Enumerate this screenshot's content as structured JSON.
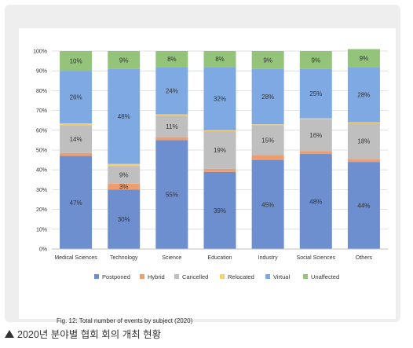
{
  "figure_caption": "Fig. 12: Total number of events by subject (2020)",
  "footer_caption": "2020년 분야별 협회 회의 개최 현황",
  "chart_data": {
    "type": "bar",
    "stacked": true,
    "percent_stacked": true,
    "title": "",
    "xlabel": "",
    "ylabel": "",
    "ylim": [
      0,
      100
    ],
    "y_ticks": [
      "0%",
      "10%",
      "20%",
      "30%",
      "40%",
      "50%",
      "60%",
      "70%",
      "80%",
      "90%",
      "100%"
    ],
    "grid": true,
    "legend_position": "bottom",
    "categories": [
      "Medical Sciences",
      "Technology",
      "Science",
      "Education",
      "Industry",
      "Social Sciences",
      "Others"
    ],
    "series": [
      {
        "name": "Postponed",
        "color": "#6e8fcf",
        "values": [
          47,
          30,
          55,
          39,
          45,
          48,
          44
        ],
        "labels": [
          "47%",
          "30%",
          "55%",
          "39%",
          "45%",
          "48%",
          "44%"
        ]
      },
      {
        "name": "Hybrid",
        "color": "#ef9c6e",
        "values": [
          1.5,
          3,
          1.5,
          1.5,
          2.5,
          1.5,
          1.5
        ],
        "labels": [
          "",
          "3%",
          "",
          "",
          "",
          "",
          ""
        ]
      },
      {
        "name": "Cancelled",
        "color": "#bfbfbf",
        "values": [
          14,
          9,
          11,
          19,
          15,
          16,
          18
        ],
        "labels": [
          "14%",
          "9%",
          "11%",
          "19%",
          "15%",
          "16%",
          "18%"
        ]
      },
      {
        "name": "Relocated",
        "color": "#f7cf73",
        "values": [
          1,
          1,
          0.5,
          0.5,
          0.5,
          0.5,
          0.5
        ],
        "labels": [
          "",
          "",
          "",
          "",
          "",
          "",
          ""
        ]
      },
      {
        "name": "Virtual",
        "color": "#7fa9e2",
        "values": [
          26.5,
          48,
          24,
          32,
          28,
          25,
          28
        ],
        "labels": [
          "26%",
          "48%",
          "24%",
          "32%",
          "28%",
          "25%",
          "28%"
        ]
      },
      {
        "name": "Unaffected",
        "color": "#94c47a",
        "values": [
          10,
          9,
          8,
          8,
          9,
          9,
          9
        ],
        "labels": [
          "10%",
          "9%",
          "8%",
          "8%",
          "9%",
          "9%",
          "9%"
        ]
      }
    ]
  }
}
